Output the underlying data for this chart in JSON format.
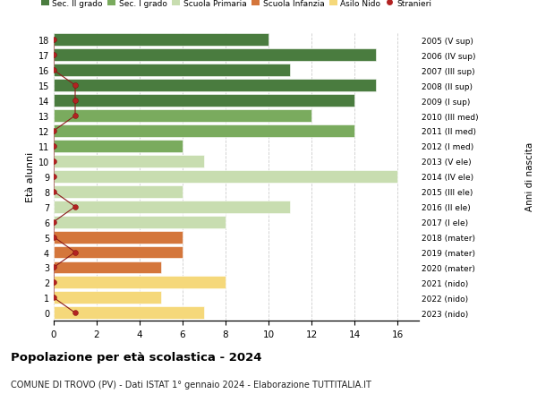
{
  "ages": [
    18,
    17,
    16,
    15,
    14,
    13,
    12,
    11,
    10,
    9,
    8,
    7,
    6,
    5,
    4,
    3,
    2,
    1,
    0
  ],
  "years_labels": [
    "2005 (V sup)",
    "2006 (IV sup)",
    "2007 (III sup)",
    "2008 (II sup)",
    "2009 (I sup)",
    "2010 (III med)",
    "2011 (II med)",
    "2012 (I med)",
    "2013 (V ele)",
    "2014 (IV ele)",
    "2015 (III ele)",
    "2016 (II ele)",
    "2017 (I ele)",
    "2018 (mater)",
    "2019 (mater)",
    "2020 (mater)",
    "2021 (nido)",
    "2022 (nido)",
    "2023 (nido)"
  ],
  "bar_values": [
    10,
    15,
    11,
    15,
    14,
    12,
    14,
    6,
    7,
    16,
    6,
    11,
    8,
    6,
    6,
    5,
    8,
    5,
    7
  ],
  "bar_colors": [
    "#4a7c3f",
    "#4a7c3f",
    "#4a7c3f",
    "#4a7c3f",
    "#4a7c3f",
    "#7aab5e",
    "#7aab5e",
    "#7aab5e",
    "#c8ddb0",
    "#c8ddb0",
    "#c8ddb0",
    "#c8ddb0",
    "#c8ddb0",
    "#d4763b",
    "#d4763b",
    "#d4763b",
    "#f5d87a",
    "#f5d87a",
    "#f5d87a"
  ],
  "stranieri_x": [
    0,
    0,
    0,
    1,
    1,
    1,
    0,
    0,
    0,
    0,
    0,
    1,
    0,
    0,
    1,
    0,
    0,
    0,
    1
  ],
  "legend_labels": [
    "Sec. II grado",
    "Sec. I grado",
    "Scuola Primaria",
    "Scuola Infanzia",
    "Asilo Nido",
    "Stranieri"
  ],
  "legend_colors": [
    "#4a7c3f",
    "#7aab5e",
    "#c8ddb0",
    "#d4763b",
    "#f5d87a",
    "#b22222"
  ],
  "ylabel": "Età alunni",
  "ylabel2": "Anni di nascita",
  "title": "Popolazione per età scolastica - 2024",
  "subtitle": "COMUNE DI TROVO (PV) - Dati ISTAT 1° gennaio 2024 - Elaborazione TUTTITALIA.IT",
  "xlim": [
    0,
    17
  ],
  "xticks": [
    0,
    2,
    4,
    6,
    8,
    10,
    12,
    14,
    16
  ],
  "grid_color": "#cccccc"
}
